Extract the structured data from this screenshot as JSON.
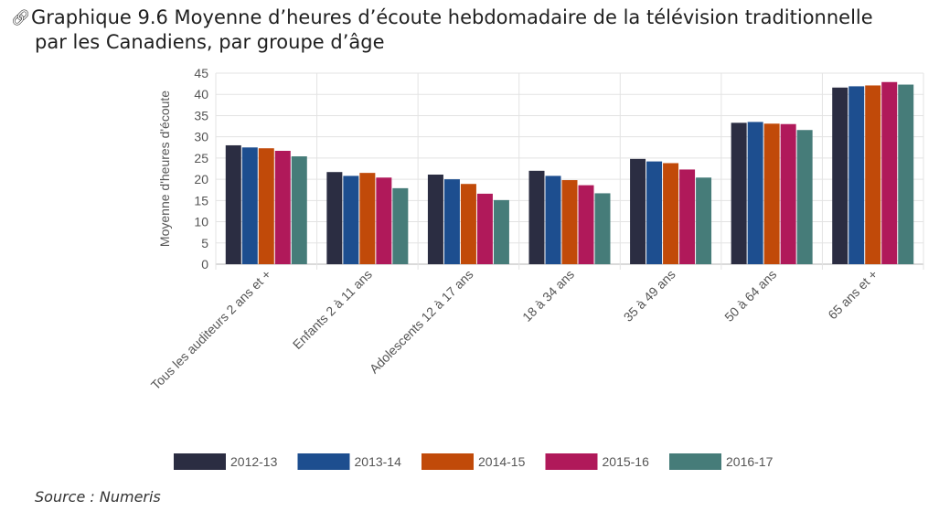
{
  "header": {
    "link_icon": "link-icon",
    "title_line1": "Graphique 9.6 Moyenne d’heures d’écoute hebdomadaire de la télévision traditionnelle",
    "title_line2": "par les Canadiens, par groupe d’âge"
  },
  "footer": {
    "source": "Source : Numeris"
  },
  "chart_data": {
    "type": "bar",
    "title": "Graphique 9.6 Moyenne d’heures d’écoute hebdomadaire de la télévision traditionnelle par les Canadiens, par groupe d’âge",
    "xlabel": "",
    "ylabel": "Moyenne d'heures d'écoute",
    "ylim": [
      0,
      45
    ],
    "yticks": [
      0,
      5,
      10,
      15,
      20,
      25,
      30,
      35,
      40,
      45
    ],
    "grid": true,
    "legend_position": "bottom",
    "categories": [
      "Tous les auditeurs 2 ans et +",
      "Enfants 2 à 11 ans",
      "Adolescents 12 à 17 ans",
      "18 à 34 ans",
      "35 à 49 ans",
      "50 à 64 ans",
      "65 ans et +"
    ],
    "series": [
      {
        "name": "2012-13",
        "color": "#2b2d42",
        "values": [
          28.0,
          21.7,
          21.1,
          22.0,
          24.8,
          33.3,
          41.6
        ]
      },
      {
        "name": "2013-14",
        "color": "#1d4e8f",
        "values": [
          27.5,
          20.8,
          20.0,
          20.8,
          24.2,
          33.5,
          41.9
        ]
      },
      {
        "name": "2014-15",
        "color": "#c14a09",
        "values": [
          27.3,
          21.5,
          18.9,
          19.8,
          23.8,
          33.1,
          42.1
        ]
      },
      {
        "name": "2015-16",
        "color": "#b0195a",
        "values": [
          26.7,
          20.4,
          16.6,
          18.6,
          22.3,
          33.0,
          42.9
        ]
      },
      {
        "name": "2016-17",
        "color": "#467c79",
        "values": [
          25.4,
          17.9,
          15.1,
          16.7,
          20.4,
          31.6,
          42.3
        ]
      }
    ]
  }
}
